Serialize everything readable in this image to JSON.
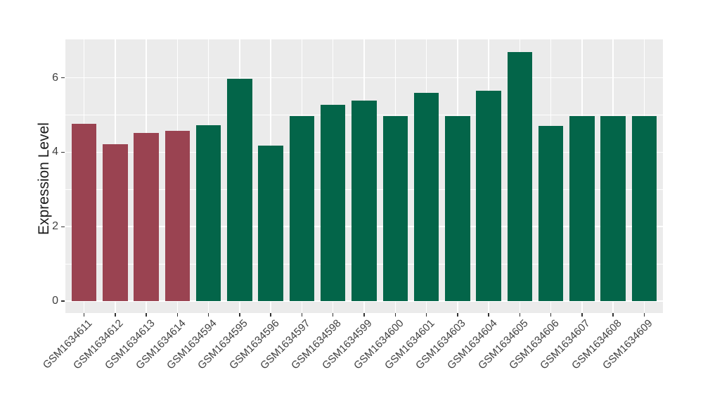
{
  "chart_data": {
    "type": "bar",
    "title": "",
    "xlabel": "",
    "ylabel": "Expression Level",
    "categories": [
      "GSM1634611",
      "GSM1634612",
      "GSM1634613",
      "GSM1634614",
      "GSM1634594",
      "GSM1634595",
      "GSM1634596",
      "GSM1634597",
      "GSM1634598",
      "GSM1634599",
      "GSM1634600",
      "GSM1634601",
      "GSM1634603",
      "GSM1634604",
      "GSM1634605",
      "GSM1634606",
      "GSM1634607",
      "GSM1634608",
      "GSM1634609"
    ],
    "values": [
      4.77,
      4.22,
      4.52,
      4.58,
      4.72,
      5.98,
      4.18,
      4.98,
      5.28,
      5.38,
      4.98,
      5.6,
      4.98,
      5.65,
      6.7,
      4.71,
      4.98,
      4.98,
      4.98
    ],
    "groups": [
      "group1",
      "group1",
      "group1",
      "group1",
      "group2",
      "group2",
      "group2",
      "group2",
      "group2",
      "group2",
      "group2",
      "group2",
      "group2",
      "group2",
      "group2",
      "group2",
      "group2",
      "group2",
      "group2"
    ],
    "group_colors": {
      "group1": "#9A4351",
      "group2": "#036549"
    },
    "yticks": [
      0,
      2,
      4,
      6
    ],
    "minor_gridlines": [
      1,
      3,
      5
    ],
    "ylim": [
      -0.32,
      7.03
    ],
    "grid": "on",
    "legend": "none",
    "bar_width_fraction": 0.8,
    "x_label_angle_deg": 45
  }
}
